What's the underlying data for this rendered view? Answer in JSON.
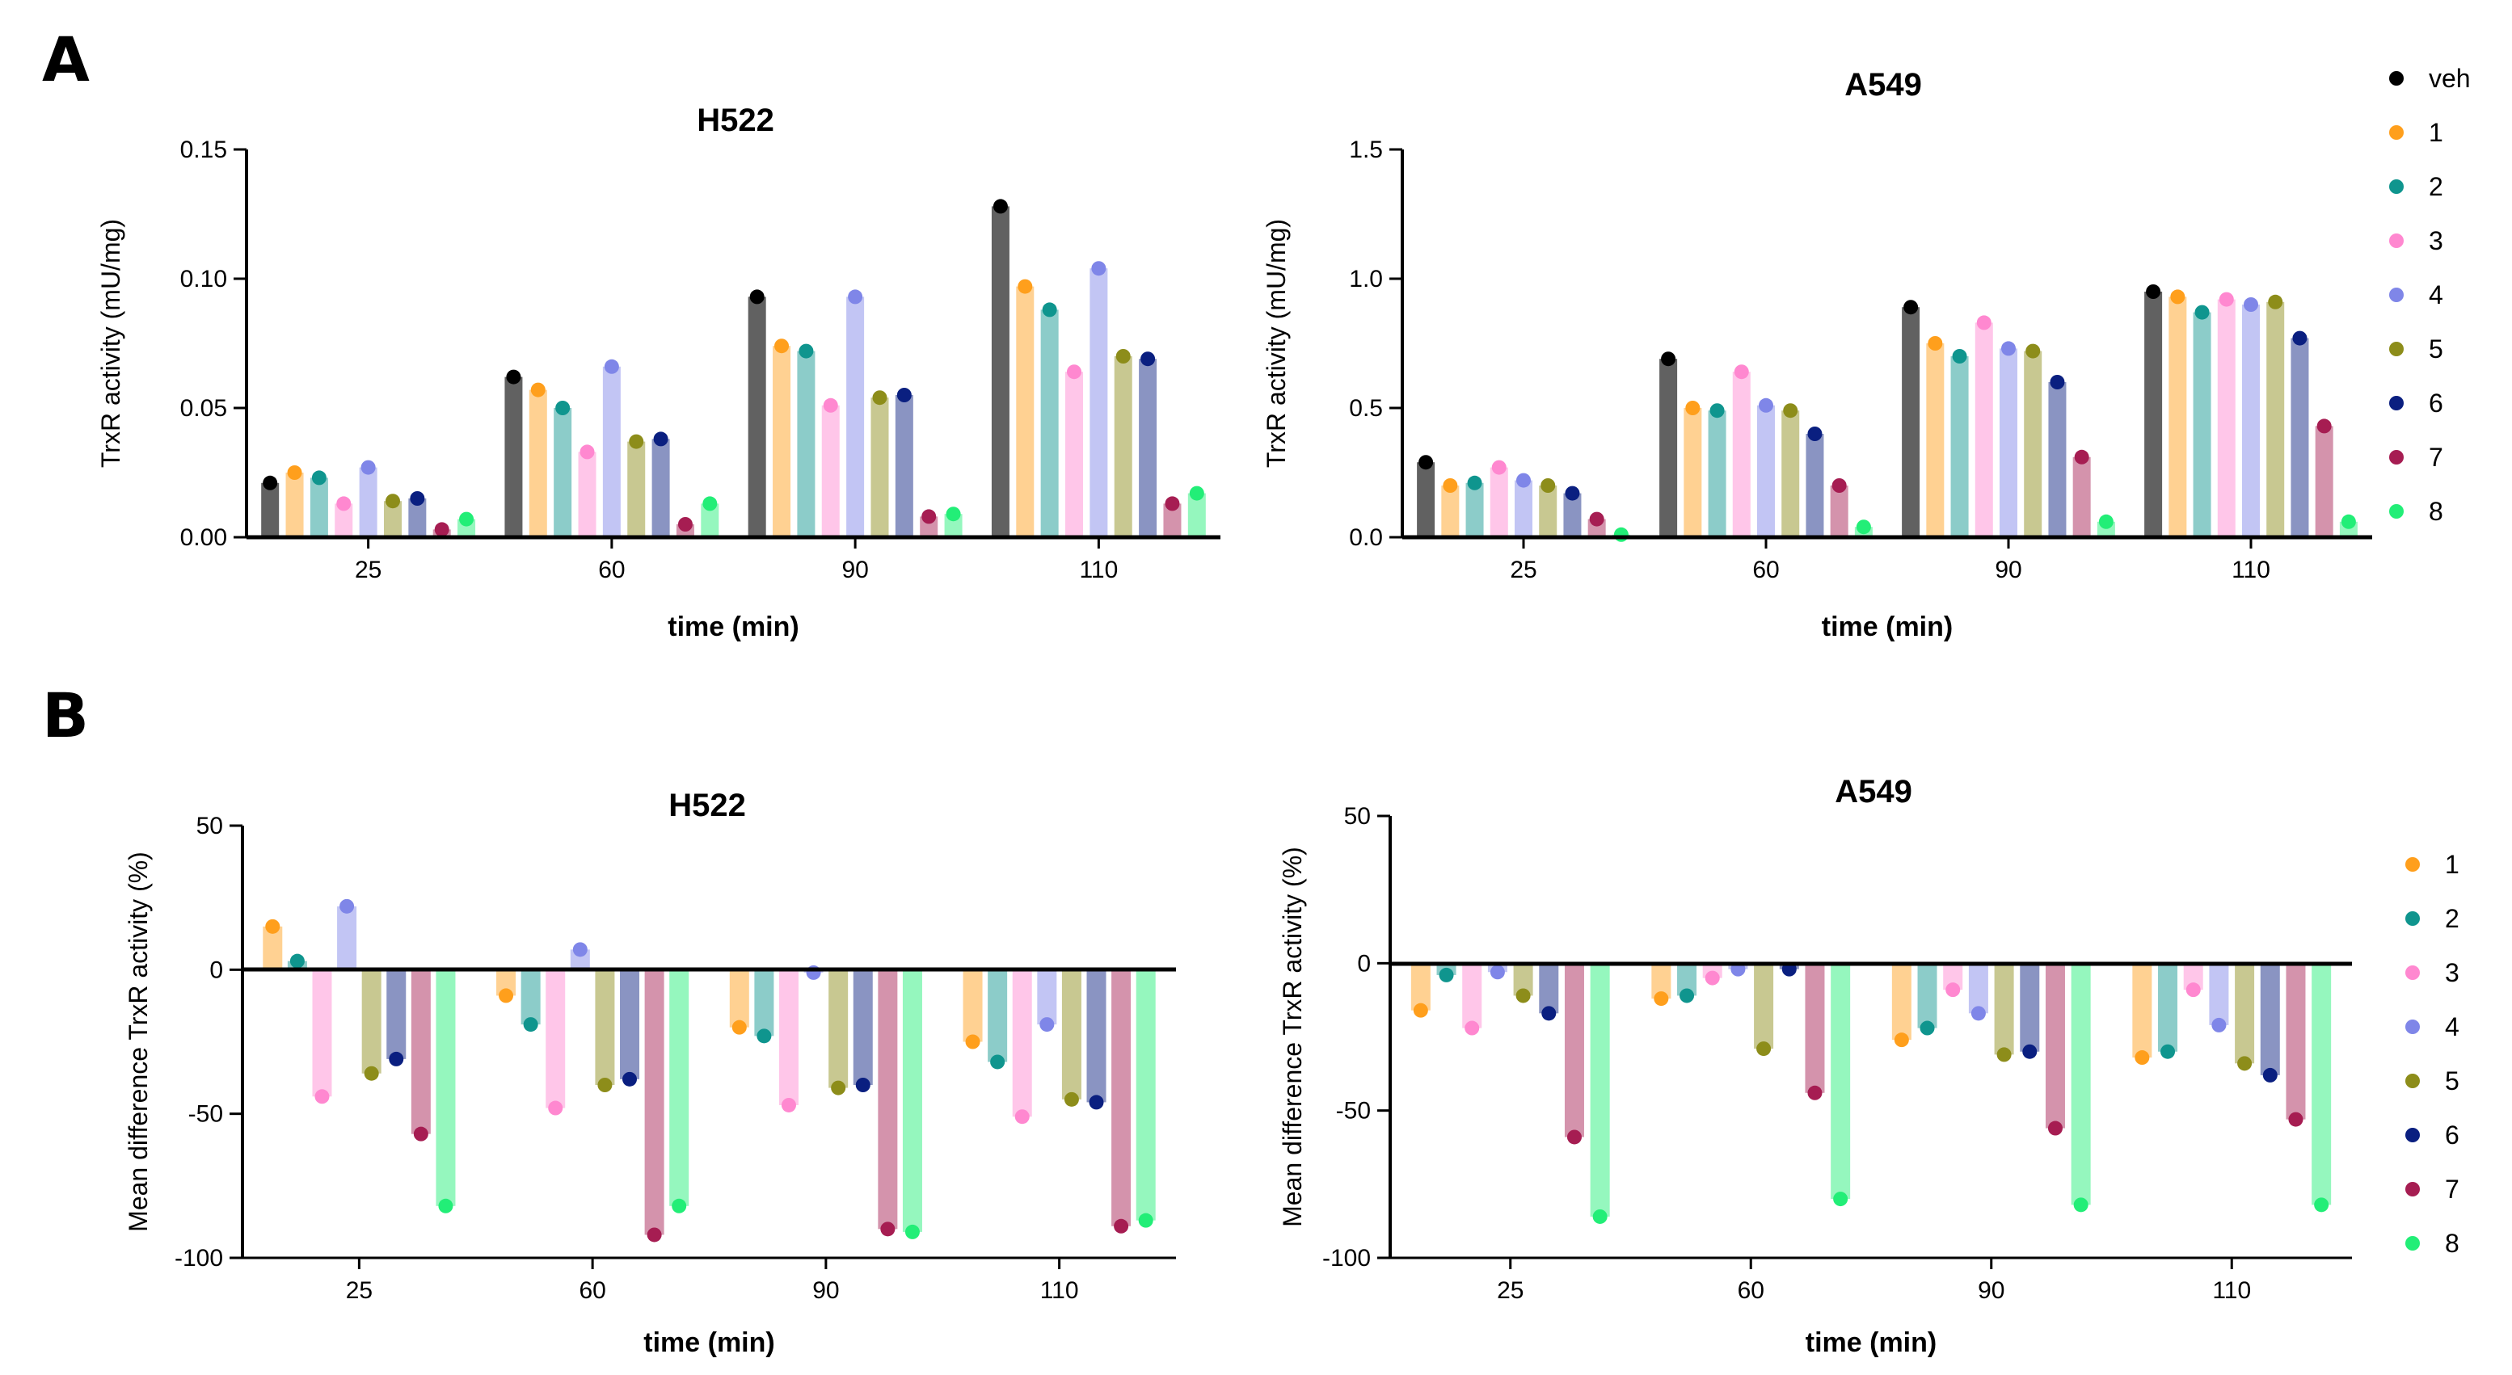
{
  "panel_labels": {
    "a": "A",
    "b": "B"
  },
  "series_names": [
    "veh",
    "1",
    "2",
    "3",
    "4",
    "5",
    "6",
    "7",
    "8"
  ],
  "series_colors": [
    "#000000",
    "#ff9f1c",
    "#0f958e",
    "#ff88d0",
    "#7f86e8",
    "#8d8d1a",
    "#0a1f80",
    "#a61d52",
    "#22ee77"
  ],
  "chart_data": [
    {
      "type": "bar",
      "title": "H522",
      "xlabel": "time (min)",
      "ylabel": "TrxR activity (mU/mg)",
      "categories": [
        "25",
        "60",
        "90",
        "110"
      ],
      "ylim": [
        0,
        0.15
      ],
      "yticks": [
        0,
        0.05,
        0.1,
        0.15
      ],
      "ytick_labels": [
        "0.00",
        "0.05",
        "0.10",
        "0.15"
      ],
      "legend": "right",
      "series": [
        {
          "name": "veh",
          "values": [
            0.021,
            0.062,
            0.093,
            0.128
          ]
        },
        {
          "name": "1",
          "values": [
            0.025,
            0.057,
            0.074,
            0.097
          ]
        },
        {
          "name": "2",
          "values": [
            0.023,
            0.05,
            0.072,
            0.088
          ]
        },
        {
          "name": "3",
          "values": [
            0.013,
            0.033,
            0.051,
            0.064
          ]
        },
        {
          "name": "4",
          "values": [
            0.027,
            0.066,
            0.093,
            0.104
          ]
        },
        {
          "name": "5",
          "values": [
            0.014,
            0.037,
            0.054,
            0.07
          ]
        },
        {
          "name": "6",
          "values": [
            0.015,
            0.038,
            0.055,
            0.069
          ]
        },
        {
          "name": "7",
          "values": [
            0.003,
            0.005,
            0.008,
            0.013
          ]
        },
        {
          "name": "8",
          "values": [
            0.007,
            0.013,
            0.009,
            0.017
          ]
        }
      ]
    },
    {
      "type": "bar",
      "title": "A549",
      "xlabel": "time (min)",
      "ylabel": "TrxR activity (mU/mg)",
      "categories": [
        "25",
        "60",
        "90",
        "110"
      ],
      "ylim": [
        0,
        1.5
      ],
      "yticks": [
        0,
        0.5,
        1.0,
        1.5
      ],
      "ytick_labels": [
        "0.0",
        "0.5",
        "1.0",
        "1.5"
      ],
      "legend": "right",
      "series": [
        {
          "name": "veh",
          "values": [
            0.29,
            0.69,
            0.89,
            0.95
          ]
        },
        {
          "name": "1",
          "values": [
            0.2,
            0.5,
            0.75,
            0.93
          ]
        },
        {
          "name": "2",
          "values": [
            0.21,
            0.49,
            0.7,
            0.87
          ]
        },
        {
          "name": "3",
          "values": [
            0.27,
            0.64,
            0.83,
            0.92
          ]
        },
        {
          "name": "4",
          "values": [
            0.22,
            0.51,
            0.73,
            0.9
          ]
        },
        {
          "name": "5",
          "values": [
            0.2,
            0.49,
            0.72,
            0.91
          ]
        },
        {
          "name": "6",
          "values": [
            0.17,
            0.4,
            0.6,
            0.77
          ]
        },
        {
          "name": "7",
          "values": [
            0.07,
            0.2,
            0.31,
            0.43
          ]
        },
        {
          "name": "8",
          "values": [
            0.01,
            0.04,
            0.06,
            0.06
          ]
        }
      ]
    },
    {
      "type": "bar",
      "title": "H522",
      "xlabel": "time (min)",
      "ylabel": "Mean difference TrxR activity (%)",
      "categories": [
        "25",
        "60",
        "90",
        "110"
      ],
      "ylim": [
        -100,
        50
      ],
      "yticks": [
        -100,
        -50,
        0,
        50
      ],
      "ytick_labels": [
        "-100",
        "-50",
        "0",
        "50"
      ],
      "legend": "right",
      "series": [
        {
          "name": "1",
          "values": [
            15,
            -9,
            -20,
            -25
          ]
        },
        {
          "name": "2",
          "values": [
            3,
            -19,
            -23,
            -32
          ]
        },
        {
          "name": "3",
          "values": [
            -44,
            -48,
            -47,
            -51
          ]
        },
        {
          "name": "4",
          "values": [
            22,
            7,
            -1,
            -19
          ]
        },
        {
          "name": "5",
          "values": [
            -36,
            -40,
            -41,
            -45
          ]
        },
        {
          "name": "6",
          "values": [
            -31,
            -38,
            -40,
            -46
          ]
        },
        {
          "name": "7",
          "values": [
            -57,
            -92,
            -90,
            -89
          ]
        },
        {
          "name": "8",
          "values": [
            -82,
            -82,
            -91,
            -87
          ]
        }
      ]
    },
    {
      "type": "bar",
      "title": "A549",
      "xlabel": "time (min)",
      "ylabel": "Mean difference TrxR activity (%)",
      "categories": [
        "25",
        "60",
        "90",
        "110"
      ],
      "ylim": [
        -100,
        50
      ],
      "yticks": [
        -100,
        -50,
        0,
        50
      ],
      "ytick_labels": [
        "-100",
        "-50",
        "0",
        "50"
      ],
      "legend": "right",
      "series": [
        {
          "name": "1",
          "values": [
            -16,
            -12,
            -26,
            -32
          ]
        },
        {
          "name": "2",
          "values": [
            -4,
            -11,
            -22,
            -30
          ]
        },
        {
          "name": "3",
          "values": [
            -22,
            -5,
            -9,
            -9
          ]
        },
        {
          "name": "4",
          "values": [
            -3,
            -2,
            -17,
            -21
          ]
        },
        {
          "name": "5",
          "values": [
            -11,
            -29,
            -31,
            -34
          ]
        },
        {
          "name": "6",
          "values": [
            -17,
            -2,
            -30,
            -38
          ]
        },
        {
          "name": "7",
          "values": [
            -59,
            -44,
            -56,
            -53
          ]
        },
        {
          "name": "8",
          "values": [
            -86,
            -80,
            -82,
            -82
          ]
        }
      ]
    }
  ]
}
